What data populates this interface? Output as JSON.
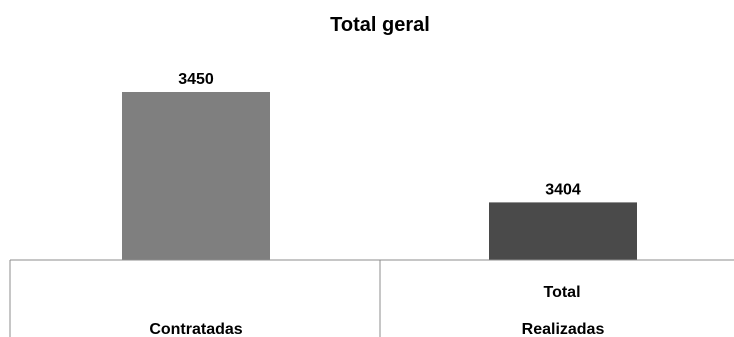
{
  "chart_data": {
    "type": "bar",
    "title": "Total geral",
    "group_label": "Total",
    "categories": [
      "Contratadas",
      "Realizadas"
    ],
    "values": [
      3450,
      3404
    ],
    "colors": [
      "#7f7f7f",
      "#4a4a4a"
    ],
    "xlabel": "",
    "ylabel": "",
    "ylim": [
      3380,
      3455
    ],
    "grid": false,
    "legend": "none"
  }
}
